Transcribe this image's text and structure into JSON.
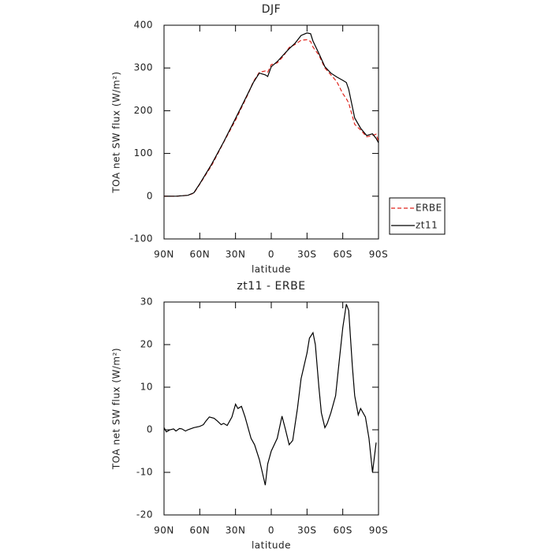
{
  "chart_data": [
    {
      "type": "line",
      "title": "DJF",
      "xlabel": "latitude",
      "ylabel": "TOA net SW flux (W/m²)",
      "x": [
        90,
        80,
        70,
        65,
        60,
        50,
        40,
        30,
        20,
        15,
        10,
        5,
        3,
        0,
        -5,
        -10,
        -15,
        -20,
        -25,
        -30,
        -33,
        -35,
        -40,
        -45,
        -50,
        -55,
        -60,
        -63,
        -65,
        -70,
        -75,
        -80,
        -85,
        -88,
        -90
      ],
      "series": [
        {
          "name": "ERBE",
          "color": "#e0241c",
          "dash": true,
          "values": [
            0,
            0,
            2,
            7,
            28,
            72,
            126,
            178,
            236,
            268,
            290,
            293,
            290,
            308,
            312,
            327,
            348,
            355,
            365,
            366,
            362,
            349,
            330,
            300,
            284,
            268,
            240,
            228,
            218,
            168,
            155,
            139,
            142,
            145,
            128
          ]
        },
        {
          "name": "zt11",
          "color": "#000000",
          "dash": false,
          "values": [
            0,
            0,
            2,
            8,
            29,
            75,
            127,
            182,
            238,
            266,
            288,
            284,
            280,
            303,
            315,
            330,
            345,
            358,
            376,
            382,
            380,
            363,
            334,
            303,
            288,
            279,
            271,
            266,
            250,
            183,
            159,
            142,
            146,
            135,
            125
          ]
        }
      ],
      "xlim": [
        90,
        -90
      ],
      "xticks": [
        {
          "value": 90,
          "label": "90N"
        },
        {
          "value": 60,
          "label": "60N"
        },
        {
          "value": 30,
          "label": "30N"
        },
        0,
        {
          "value": -30,
          "label": "30S"
        },
        {
          "value": -60,
          "label": "60S"
        },
        {
          "value": -90,
          "label": "90S"
        }
      ],
      "ylim": [
        -100,
        400
      ],
      "yticks": [
        -100,
        0,
        100,
        200,
        300,
        400
      ],
      "legend": "right"
    },
    {
      "type": "line",
      "title": "zt11 - ERBE",
      "xlabel": "latitude",
      "ylabel": "TOA net SW flux (W/m²)",
      "x": [
        90,
        88,
        85,
        82,
        80,
        77,
        75,
        72,
        70,
        65,
        60,
        57,
        55,
        52,
        48,
        45,
        42,
        40,
        37,
        33,
        30,
        28,
        25,
        22,
        20,
        17,
        14,
        10,
        5,
        3,
        0,
        -5,
        -9,
        -12,
        -15,
        -18,
        -22,
        -25,
        -30,
        -32,
        -35,
        -37,
        -40,
        -42,
        -45,
        -47,
        -50,
        -54,
        -57,
        -60,
        -63,
        -65,
        -68,
        -70,
        -73,
        -75,
        -79,
        -82,
        -85,
        -88
      ],
      "series": [
        {
          "name": "zt11 - ERBE",
          "color": "#000000",
          "dash": false,
          "values": [
            0.5,
            -0.5,
            0,
            0.2,
            -0.3,
            0.3,
            0.2,
            -0.3,
            0,
            0.5,
            0.8,
            1.2,
            2,
            3,
            2.7,
            2,
            1.2,
            1.5,
            1,
            3,
            6,
            5,
            5.5,
            3,
            1,
            -2,
            -3.5,
            -7,
            -13,
            -8,
            -5,
            -2,
            3.2,
            0,
            -3.5,
            -2.5,
            5,
            12,
            18,
            21.5,
            22.8,
            20,
            10,
            4,
            0.5,
            1.5,
            4,
            8,
            16,
            24,
            29.5,
            28,
            15,
            8,
            3.5,
            5,
            3,
            -2,
            -10,
            -3
          ]
        }
      ],
      "xlim": [
        90,
        -90
      ],
      "xticks": [
        {
          "value": 90,
          "label": "90N"
        },
        {
          "value": 60,
          "label": "60N"
        },
        {
          "value": 30,
          "label": "30N"
        },
        0,
        {
          "value": -30,
          "label": "30S"
        },
        {
          "value": -60,
          "label": "60S"
        },
        {
          "value": -90,
          "label": "90S"
        }
      ],
      "ylim": [
        -20,
        30
      ],
      "yticks": [
        -20,
        -10,
        0,
        10,
        20,
        30
      ]
    }
  ]
}
